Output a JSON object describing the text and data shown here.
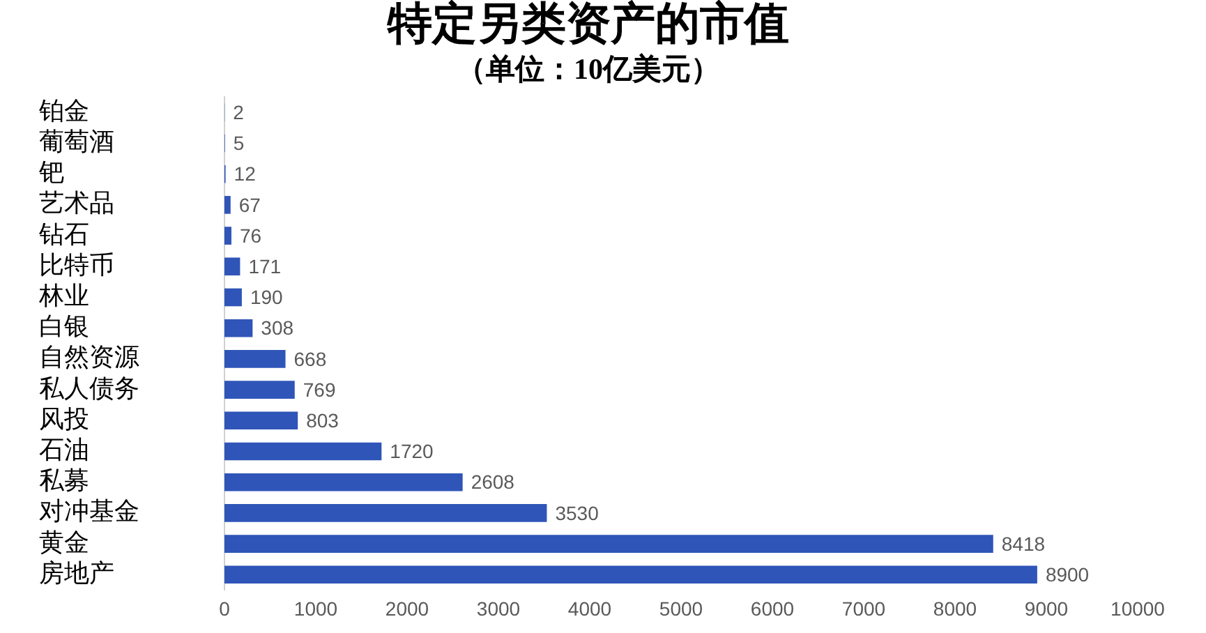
{
  "chart_data": {
    "type": "bar",
    "orientation": "horizontal",
    "title": "特定另类资产的市值",
    "subtitle": "（单位：10亿美元）",
    "categories": [
      "铂金",
      "葡萄酒",
      "钯",
      "艺术品",
      "钻石",
      "比特币",
      "林业",
      "白银",
      "自然资源",
      "私人债务",
      "风投",
      "石油",
      "私募",
      "对冲基金",
      "黄金",
      "房地产"
    ],
    "values": [
      2,
      5,
      12,
      67,
      76,
      171,
      190,
      308,
      668,
      769,
      803,
      1720,
      2608,
      3530,
      8418,
      8900
    ],
    "color": "#2f55b8",
    "xlim": [
      0,
      10000
    ],
    "xticks": [
      0,
      1000,
      2000,
      3000,
      4000,
      5000,
      6000,
      7000,
      8000,
      9000,
      10000
    ],
    "grid": false,
    "legend": false,
    "data_labels": true
  }
}
